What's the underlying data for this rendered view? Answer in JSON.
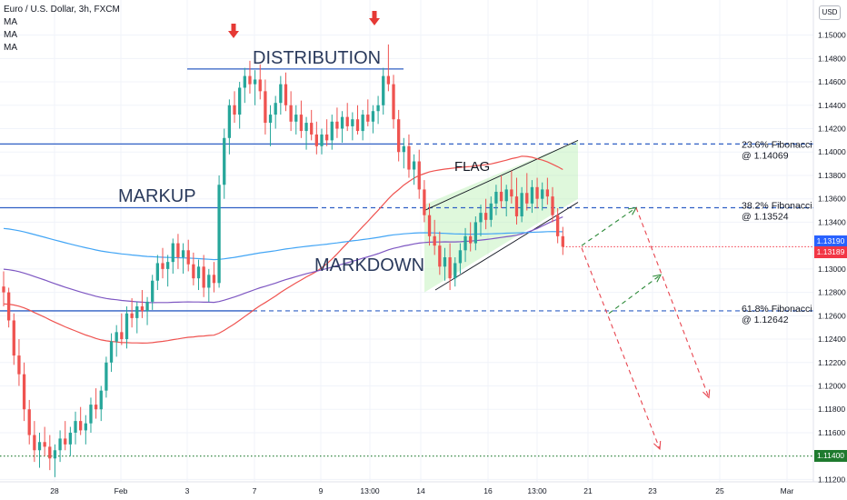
{
  "chart_data": {
    "type": "candlestick",
    "title": "Euro / U.S. Dollar, 3h, FXCM",
    "currency": "USD",
    "indicators": [
      "MA",
      "MA",
      "MA"
    ],
    "y_range": [
      1.1118,
      1.153
    ],
    "y_ticks": [
      "1.15000",
      "1.14800",
      "1.14600",
      "1.14400",
      "1.14200",
      "1.14000",
      "1.13800",
      "1.13600",
      "1.13400",
      "1.13000",
      "1.12800",
      "1.12600",
      "1.12400",
      "1.12200",
      "1.12000",
      "1.11800",
      "1.11600",
      "1.11200"
    ],
    "x_ticks": [
      "28",
      "Feb",
      "3",
      "7",
      "9",
      "13:00",
      "14",
      "16",
      "13:00",
      "21",
      "23",
      "25",
      "Mar"
    ],
    "price_tags": [
      {
        "label": "1.13190",
        "value": 1.1319,
        "color": "#2962ff"
      },
      {
        "label": "1.13189",
        "value": 1.13189,
        "color": "#f23645"
      },
      {
        "label": "1.11400",
        "value": 1.114,
        "color": "#1e7a2e"
      }
    ],
    "fib_levels": [
      {
        "name": "23.6% Fibonacci",
        "value_label": "@ 1.14069",
        "value": 1.14069
      },
      {
        "name": "38.2% Fibonacci",
        "value_label": "@ 1.13524",
        "value": 1.13524
      },
      {
        "name": "61.8% Fibonacci",
        "value_label": "@ 1.12642",
        "value": 1.12642
      }
    ],
    "support_level": 1.114,
    "distribution_level": 1.1471,
    "annotations": [
      "DISTRIBUTION",
      "MARKUP",
      "MARKDOWN",
      "FLAG"
    ],
    "series_colors": {
      "up": "#26a69a",
      "down": "#ef5350",
      "ma_fast": "#ef5350",
      "ma_mid": "#7e57c2",
      "ma_slow": "#42a5f5"
    },
    "candles": [
      [
        1.1285,
        1.1298,
        1.1268,
        1.128
      ],
      [
        1.128,
        1.1284,
        1.125,
        1.1256
      ],
      [
        1.1256,
        1.1262,
        1.1218,
        1.1226
      ],
      [
        1.1226,
        1.124,
        1.12,
        1.121
      ],
      [
        1.121,
        1.122,
        1.117,
        1.118
      ],
      [
        1.118,
        1.1188,
        1.115,
        1.1158
      ],
      [
        1.1158,
        1.117,
        1.1135,
        1.1145
      ],
      [
        1.1145,
        1.116,
        1.113,
        1.1152
      ],
      [
        1.1152,
        1.1165,
        1.114,
        1.1148
      ],
      [
        1.1148,
        1.1158,
        1.1128,
        1.1138
      ],
      [
        1.1138,
        1.115,
        1.1122,
        1.1145
      ],
      [
        1.1145,
        1.1162,
        1.1135,
        1.1155
      ],
      [
        1.1155,
        1.117,
        1.1145,
        1.115
      ],
      [
        1.115,
        1.1165,
        1.114,
        1.116
      ],
      [
        1.116,
        1.1178,
        1.115,
        1.117
      ],
      [
        1.117,
        1.1182,
        1.1158,
        1.1162
      ],
      [
        1.1162,
        1.1175,
        1.115,
        1.1168
      ],
      [
        1.1168,
        1.119,
        1.116,
        1.1184
      ],
      [
        1.1184,
        1.1198,
        1.1172,
        1.118
      ],
      [
        1.118,
        1.12,
        1.117,
        1.1196
      ],
      [
        1.1196,
        1.1225,
        1.119,
        1.122
      ],
      [
        1.122,
        1.1245,
        1.1212,
        1.1238
      ],
      [
        1.1238,
        1.1252,
        1.1225,
        1.1246
      ],
      [
        1.1246,
        1.1262,
        1.1235,
        1.124
      ],
      [
        1.124,
        1.1268,
        1.1232,
        1.1262
      ],
      [
        1.1262,
        1.1275,
        1.125,
        1.1258
      ],
      [
        1.1258,
        1.1272,
        1.1245,
        1.1268
      ],
      [
        1.1268,
        1.1282,
        1.1258,
        1.1264
      ],
      [
        1.1264,
        1.1276,
        1.1252,
        1.1272
      ],
      [
        1.1272,
        1.1295,
        1.1265,
        1.129
      ],
      [
        1.129,
        1.1312,
        1.1282,
        1.1305
      ],
      [
        1.1305,
        1.1318,
        1.1292,
        1.13
      ],
      [
        1.13,
        1.1312,
        1.1285,
        1.1306
      ],
      [
        1.1306,
        1.1326,
        1.1296,
        1.1322
      ],
      [
        1.1322,
        1.133,
        1.13,
        1.131
      ],
      [
        1.131,
        1.1322,
        1.1296,
        1.1316
      ],
      [
        1.1316,
        1.1325,
        1.1298,
        1.1304
      ],
      [
        1.1304,
        1.1314,
        1.1286,
        1.1292
      ],
      [
        1.1292,
        1.1308,
        1.1282,
        1.1302
      ],
      [
        1.1302,
        1.1312,
        1.1276,
        1.1284
      ],
      [
        1.1284,
        1.13,
        1.1272,
        1.1295
      ],
      [
        1.1295,
        1.1306,
        1.128,
        1.1288
      ],
      [
        1.1288,
        1.138,
        1.1284,
        1.1372
      ],
      [
        1.1372,
        1.142,
        1.136,
        1.1412
      ],
      [
        1.1412,
        1.1445,
        1.1398,
        1.144
      ],
      [
        1.144,
        1.1452,
        1.1425,
        1.1432
      ],
      [
        1.1432,
        1.146,
        1.142,
        1.1455
      ],
      [
        1.1455,
        1.1472,
        1.1442,
        1.1465
      ],
      [
        1.1465,
        1.1478,
        1.145,
        1.1458
      ],
      [
        1.1458,
        1.147,
        1.144,
        1.1462
      ],
      [
        1.1462,
        1.1475,
        1.1445,
        1.1452
      ],
      [
        1.1452,
        1.1462,
        1.1415,
        1.1425
      ],
      [
        1.1425,
        1.144,
        1.1405,
        1.1432
      ],
      [
        1.1432,
        1.1448,
        1.142,
        1.1442
      ],
      [
        1.1442,
        1.1465,
        1.1432,
        1.1458
      ],
      [
        1.1458,
        1.1468,
        1.1435,
        1.144
      ],
      [
        1.144,
        1.1452,
        1.1418,
        1.1426
      ],
      [
        1.1426,
        1.144,
        1.1415,
        1.1432
      ],
      [
        1.1432,
        1.1444,
        1.1412,
        1.1418
      ],
      [
        1.1418,
        1.143,
        1.1402,
        1.1425
      ],
      [
        1.1425,
        1.1436,
        1.141,
        1.1415
      ],
      [
        1.1415,
        1.1426,
        1.1398,
        1.1405
      ],
      [
        1.1405,
        1.142,
        1.1398,
        1.1415
      ],
      [
        1.1415,
        1.1428,
        1.1405,
        1.141
      ],
      [
        1.141,
        1.1432,
        1.1402,
        1.1426
      ],
      [
        1.1426,
        1.1438,
        1.1412,
        1.142
      ],
      [
        1.142,
        1.1435,
        1.1408,
        1.143
      ],
      [
        1.143,
        1.1442,
        1.1418,
        1.1422
      ],
      [
        1.1422,
        1.1434,
        1.141,
        1.1428
      ],
      [
        1.1428,
        1.144,
        1.1415,
        1.1418
      ],
      [
        1.1418,
        1.1436,
        1.141,
        1.1432
      ],
      [
        1.1432,
        1.1445,
        1.1422,
        1.1426
      ],
      [
        1.1426,
        1.144,
        1.1416,
        1.1435
      ],
      [
        1.1435,
        1.1448,
        1.1424,
        1.144
      ],
      [
        1.144,
        1.1472,
        1.1432,
        1.1465
      ],
      [
        1.1465,
        1.1492,
        1.1452,
        1.1458
      ],
      [
        1.1458,
        1.1466,
        1.142,
        1.1428
      ],
      [
        1.1428,
        1.1436,
        1.1392,
        1.14
      ],
      [
        1.14,
        1.1412,
        1.1386,
        1.1405
      ],
      [
        1.1405,
        1.1415,
        1.1378,
        1.1385
      ],
      [
        1.1385,
        1.1398,
        1.1372,
        1.1392
      ],
      [
        1.1392,
        1.1402,
        1.136,
        1.1368
      ],
      [
        1.1368,
        1.1376,
        1.134,
        1.1346
      ],
      [
        1.1346,
        1.1356,
        1.132,
        1.1328
      ],
      [
        1.1328,
        1.1342,
        1.1312,
        1.132
      ],
      [
        1.132,
        1.1332,
        1.1295,
        1.1302
      ],
      [
        1.1302,
        1.1318,
        1.129,
        1.131
      ],
      [
        1.131,
        1.1322,
        1.1282,
        1.1292
      ],
      [
        1.1292,
        1.131,
        1.1285,
        1.1305
      ],
      [
        1.1305,
        1.1322,
        1.1296,
        1.1316
      ],
      [
        1.1316,
        1.1335,
        1.1306,
        1.1328
      ],
      [
        1.1328,
        1.134,
        1.1315,
        1.1322
      ],
      [
        1.1322,
        1.1345,
        1.1316,
        1.134
      ],
      [
        1.134,
        1.1355,
        1.1328,
        1.1348
      ],
      [
        1.1348,
        1.136,
        1.1334,
        1.1342
      ],
      [
        1.1342,
        1.1362,
        1.1336,
        1.1356
      ],
      [
        1.1356,
        1.1372,
        1.1346,
        1.1366
      ],
      [
        1.1366,
        1.138,
        1.1352,
        1.1358
      ],
      [
        1.1358,
        1.1372,
        1.1345,
        1.1368
      ],
      [
        1.1368,
        1.1384,
        1.1356,
        1.1362
      ],
      [
        1.1362,
        1.1378,
        1.1338,
        1.1345
      ],
      [
        1.1345,
        1.137,
        1.134,
        1.1365
      ],
      [
        1.1365,
        1.1382,
        1.135,
        1.1356
      ],
      [
        1.1356,
        1.1376,
        1.1348,
        1.137
      ],
      [
        1.137,
        1.1378,
        1.1352,
        1.136
      ],
      [
        1.136,
        1.1374,
        1.135,
        1.1368
      ],
      [
        1.1368,
        1.1378,
        1.1355,
        1.1362
      ],
      [
        1.1362,
        1.137,
        1.134,
        1.1346
      ],
      [
        1.1346,
        1.1352,
        1.1322,
        1.1328
      ],
      [
        1.1328,
        1.1336,
        1.1312,
        1.1319
      ]
    ]
  }
}
